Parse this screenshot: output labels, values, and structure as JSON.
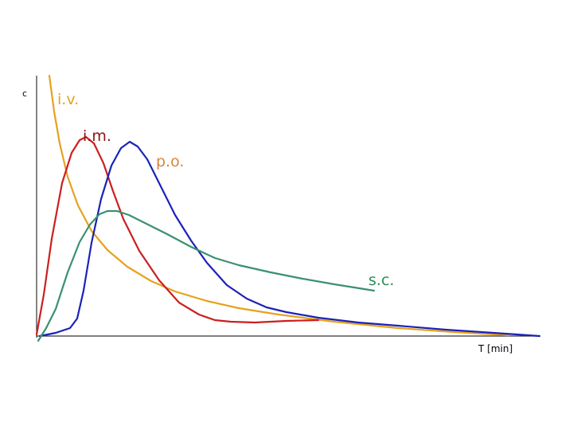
{
  "axes": {
    "y_label": "c",
    "x_label": "T [min]"
  },
  "curves": [
    {
      "label": "i.v."
    },
    {
      "label": "i.m."
    },
    {
      "label": "p.o."
    },
    {
      "label": "s.c."
    }
  ]
}
